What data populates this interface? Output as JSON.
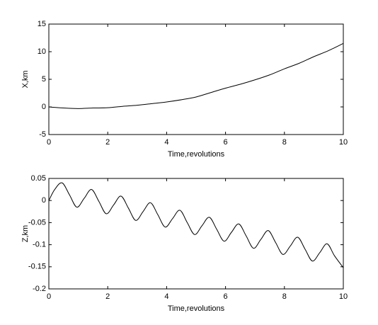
{
  "chart_data": [
    {
      "type": "line",
      "xlabel": "Time,revolutions",
      "ylabel": "X,km",
      "x": [
        0,
        0.5,
        1,
        1.5,
        2,
        2.5,
        3,
        3.5,
        4,
        4.5,
        5,
        5.5,
        6,
        6.5,
        7,
        7.5,
        8,
        8.5,
        9,
        9.5,
        10
      ],
      "values": [
        0,
        -0.2,
        -0.3,
        -0.2,
        -0.15,
        0.1,
        0.3,
        0.6,
        0.9,
        1.3,
        1.8,
        2.6,
        3.4,
        4.1,
        4.9,
        5.8,
        6.9,
        7.9,
        9.1,
        10.2,
        11.5
      ],
      "color": "#000000",
      "xlim": [
        0,
        10
      ],
      "xticks": [
        0,
        2,
        4,
        6,
        8,
        10
      ],
      "ylim": [
        -5,
        15
      ],
      "yticks": [
        -5,
        0,
        5,
        10,
        15
      ]
    },
    {
      "type": "line",
      "xlabel": "Time,revolutions",
      "ylabel": "Z,km",
      "x": [
        0,
        0.2,
        0.45,
        0.7,
        0.95,
        1.2,
        1.45,
        1.7,
        1.95,
        2.2,
        2.45,
        2.7,
        2.95,
        3.2,
        3.45,
        3.7,
        3.95,
        4.2,
        4.45,
        4.7,
        4.95,
        5.2,
        5.45,
        5.7,
        5.95,
        6.2,
        6.45,
        6.7,
        6.95,
        7.2,
        7.45,
        7.7,
        7.95,
        8.2,
        8.45,
        8.7,
        8.95,
        9.2,
        9.45,
        9.7,
        10
      ],
      "values": [
        0,
        0.025,
        0.04,
        0.013,
        -0.015,
        0.005,
        0.025,
        -0.002,
        -0.03,
        -0.01,
        0.01,
        -0.017,
        -0.045,
        -0.025,
        -0.005,
        -0.032,
        -0.06,
        -0.041,
        -0.022,
        -0.05,
        -0.077,
        -0.057,
        -0.038,
        -0.065,
        -0.092,
        -0.072,
        -0.053,
        -0.08,
        -0.108,
        -0.088,
        -0.068,
        -0.095,
        -0.122,
        -0.103,
        -0.083,
        -0.11,
        -0.137,
        -0.118,
        -0.098,
        -0.125,
        -0.152
      ],
      "color": "#000000",
      "xlim": [
        0,
        10
      ],
      "xticks": [
        0,
        2,
        4,
        6,
        8,
        10
      ],
      "ylim": [
        -0.2,
        0.05
      ],
      "yticks": [
        -0.2,
        -0.15,
        -0.1,
        -0.05,
        0,
        0.05
      ]
    }
  ]
}
